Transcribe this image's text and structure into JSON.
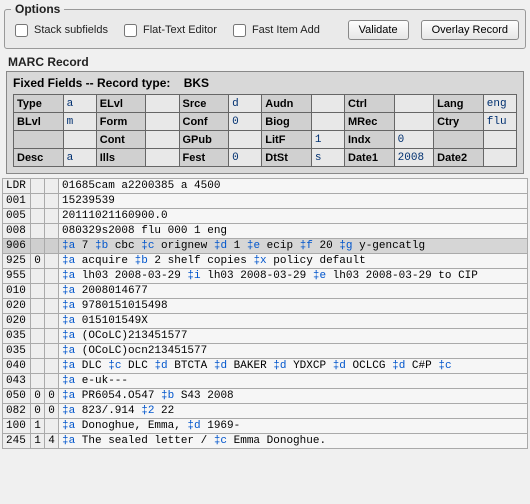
{
  "options": {
    "legend": "Options",
    "stack": "Stack subfields",
    "flat": "Flat-Text Editor",
    "fast": "Fast Item Add",
    "validate": "Validate",
    "overlay": "Overlay Record"
  },
  "marc_title": "MARC Record",
  "fixed": {
    "title_prefix": "Fixed Fields -- Record type:",
    "record_type": "BKS",
    "rows": [
      [
        {
          "l": "Type",
          "v": "a"
        },
        {
          "l": "ELvl",
          "v": ""
        },
        {
          "l": "Srce",
          "v": "d"
        },
        {
          "l": "Audn",
          "v": ""
        },
        {
          "l": "Ctrl",
          "v": ""
        },
        {
          "l": "Lang",
          "v": "eng"
        }
      ],
      [
        {
          "l": "BLvl",
          "v": "m"
        },
        {
          "l": "Form",
          "v": ""
        },
        {
          "l": "Conf",
          "v": "0"
        },
        {
          "l": "Biog",
          "v": ""
        },
        {
          "l": "MRec",
          "v": ""
        },
        {
          "l": "Ctry",
          "v": "flu"
        }
      ],
      [
        {
          "l": "",
          "v": ""
        },
        {
          "l": "Cont",
          "v": ""
        },
        {
          "l": "GPub",
          "v": ""
        },
        {
          "l": "LitF",
          "v": "1"
        },
        {
          "l": "Indx",
          "v": "0"
        },
        {
          "l": "",
          "v": ""
        }
      ],
      [
        {
          "l": "Desc",
          "v": "a"
        },
        {
          "l": "Ills",
          "v": ""
        },
        {
          "l": "Fest",
          "v": "0"
        },
        {
          "l": "DtSt",
          "v": "s"
        },
        {
          "l": "Date1",
          "v": "2008"
        },
        {
          "l": "Date2",
          "v": ""
        }
      ]
    ]
  },
  "marc_rows": [
    {
      "tag": "LDR",
      "i1": "",
      "i2": "",
      "content": "01685cam a2200385 a 4500"
    },
    {
      "tag": "001",
      "i1": "",
      "i2": "",
      "content": "15239539"
    },
    {
      "tag": "005",
      "i1": "",
      "i2": "",
      "content": "20111021160900.0"
    },
    {
      "tag": "008",
      "i1": "",
      "i2": "",
      "content": "080329s2008    flu           000 1 eng"
    },
    {
      "tag": "906",
      "i1": "",
      "i2": "",
      "highlight": true,
      "content": "‡a 7   ‡b cbc  ‡c orignew  ‡d 1  ‡e ecip  ‡f 20  ‡g y-gencatlg"
    },
    {
      "tag": "925",
      "i1": "0",
      "i2": "",
      "content": "‡a acquire   ‡b 2 shelf copies  ‡x policy default"
    },
    {
      "tag": "955",
      "i1": "",
      "i2": "",
      "content": "‡a lh03 2008-03-29  ‡i lh03 2008-03-29  ‡e lh03 2008-03-29 to CIP"
    },
    {
      "tag": "010",
      "i1": "",
      "i2": "",
      "content": "‡a   2008014677"
    },
    {
      "tag": "020",
      "i1": "",
      "i2": "",
      "content": "‡a 9780151015498"
    },
    {
      "tag": "020",
      "i1": "",
      "i2": "",
      "content": "‡a 015101549X"
    },
    {
      "tag": "035",
      "i1": "",
      "i2": "",
      "content": "‡a (OCoLC)213451577"
    },
    {
      "tag": "035",
      "i1": "",
      "i2": "",
      "content": "‡a (OCoLC)ocn213451577"
    },
    {
      "tag": "040",
      "i1": "",
      "i2": "",
      "content": "‡a DLC  ‡c DLC  ‡d BTCTA  ‡d BAKER  ‡d YDXCP  ‡d OCLCG  ‡d C#P  ‡c"
    },
    {
      "tag": "043",
      "i1": "",
      "i2": "",
      "content": "‡a e-uk---"
    },
    {
      "tag": "050",
      "i1": "0",
      "i2": "0",
      "content": "‡a PR6054.O547  ‡b S43 2008"
    },
    {
      "tag": "082",
      "i1": "0",
      "i2": "0",
      "content": "‡a 823/.914  ‡2 22"
    },
    {
      "tag": "100",
      "i1": "1",
      "i2": "",
      "content": "‡a Donoghue, Emma,  ‡d 1969-"
    },
    {
      "tag": "245",
      "i1": "1",
      "i2": "4",
      "content": "‡a The sealed letter /  ‡c Emma Donoghue."
    }
  ]
}
